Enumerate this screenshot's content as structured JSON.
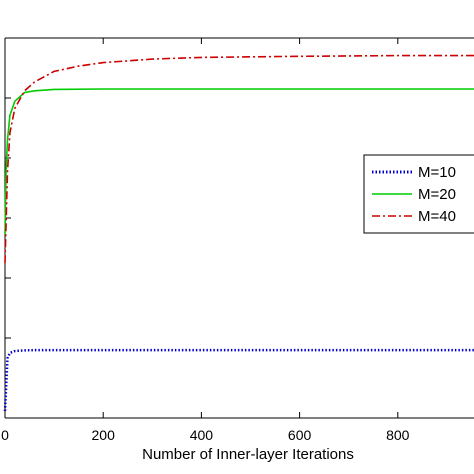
{
  "chart_data": {
    "type": "line",
    "title": "",
    "xlabel": "Number of Inner-layer Iterations",
    "ylabel": "",
    "xlim": [
      0,
      1000
    ],
    "x_ticks": [
      0,
      200,
      400,
      600,
      800
    ],
    "x_tick_labels": [
      "0",
      "200",
      "400",
      "600",
      "800"
    ],
    "grid": false,
    "legend_position": "right",
    "series": [
      {
        "name": "M=10",
        "color": "#0000cc",
        "style": "dotted",
        "x": [
          0,
          5,
          10,
          20,
          40,
          60,
          100,
          200,
          400,
          600,
          800,
          1000
        ],
        "y": [
          0.02,
          0.17,
          0.185,
          0.19,
          0.192,
          0.193,
          0.193,
          0.193,
          0.193,
          0.193,
          0.193,
          0.193
        ]
      },
      {
        "name": "M=20",
        "color": "#00cc00",
        "style": "solid",
        "x": [
          0,
          2,
          5,
          10,
          20,
          40,
          60,
          100,
          200,
          400,
          600,
          800,
          1000
        ],
        "y": [
          0.52,
          0.7,
          0.79,
          0.86,
          0.9,
          0.925,
          0.93,
          0.934,
          0.935,
          0.935,
          0.935,
          0.935,
          0.935
        ]
      },
      {
        "name": "M=40",
        "color": "#cc0000",
        "style": "dashdot",
        "x": [
          0,
          5,
          10,
          20,
          40,
          60,
          100,
          150,
          200,
          300,
          400,
          600,
          800,
          1000
        ],
        "y": [
          0.44,
          0.7,
          0.81,
          0.88,
          0.93,
          0.955,
          0.985,
          1.0,
          1.01,
          1.02,
          1.025,
          1.028,
          1.03,
          1.03
        ]
      }
    ]
  }
}
